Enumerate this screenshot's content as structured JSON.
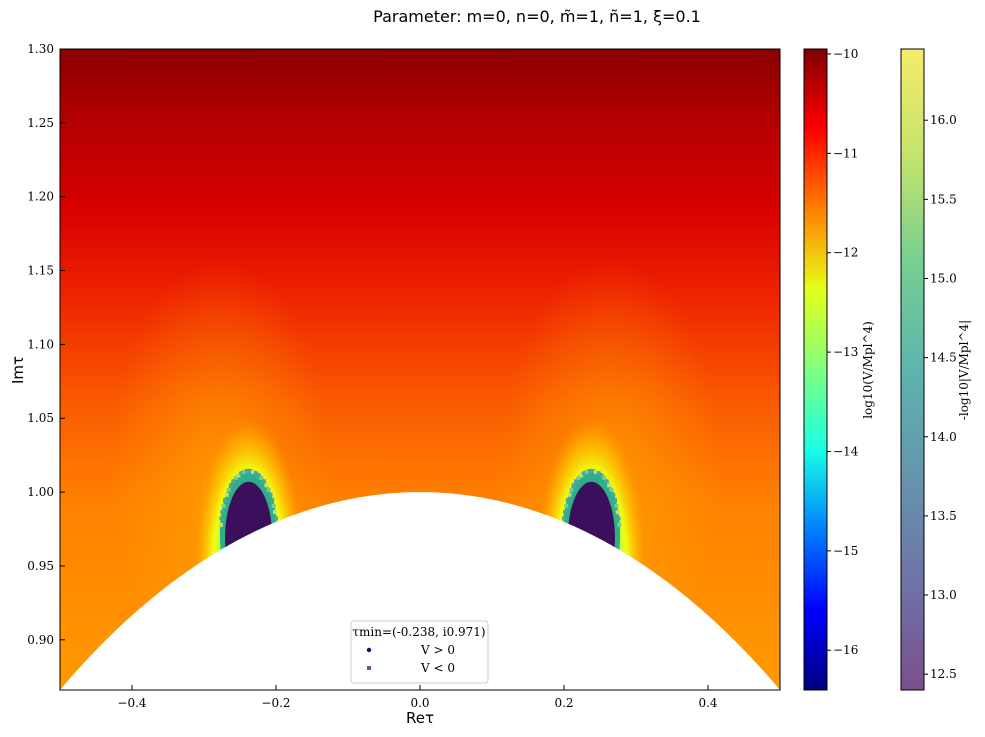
{
  "chart_data": {
    "type": "heatmap",
    "title": "Parameter: m=0, n=0, m̃=1, ñ=1, ξ=0.1",
    "xlabel": "Reτ",
    "ylabel": "Imτ",
    "xlim": [
      -0.5,
      0.5
    ],
    "ylim": [
      0.866,
      1.3
    ],
    "x_ticks": [
      "−0.4",
      "−0.2",
      "0.0",
      "0.2",
      "0.4"
    ],
    "x_tick_values": [
      -0.4,
      -0.2,
      0.0,
      0.2,
      0.4
    ],
    "y_ticks": [
      "0.90",
      "0.95",
      "1.00",
      "1.05",
      "1.10",
      "1.15",
      "1.20",
      "1.25",
      "1.30"
    ],
    "y_tick_values": [
      0.9,
      0.95,
      1.0,
      1.05,
      1.1,
      1.15,
      1.2,
      1.25,
      1.3
    ],
    "excluded_region": "|τ| < 1 (below unit circle, white)",
    "minima": [
      {
        "re": -0.238,
        "im": 0.971
      },
      {
        "re": 0.238,
        "im": 0.971
      }
    ],
    "colorbar_main": {
      "label": "log10(V/Mpl^4)",
      "range": [
        -16.4,
        -9.95
      ],
      "ticks": [
        "−10",
        "−11",
        "−12",
        "−13",
        "−14",
        "−15",
        "−16"
      ],
      "tick_values": [
        -10,
        -11,
        -12,
        -13,
        -14,
        -15,
        -16
      ],
      "colormap": "jet",
      "colors": [
        "#00007f",
        "#0000ff",
        "#0080ff",
        "#19ffe5",
        "#80ff80",
        "#e5ff19",
        "#ff8000",
        "#ff0000",
        "#7f0000"
      ]
    },
    "colorbar_secondary": {
      "label": "-log10|V/Mpl^4|",
      "range": [
        12.4,
        16.45
      ],
      "ticks": [
        "16.0",
        "15.5",
        "15.0",
        "14.5",
        "14.0",
        "13.5",
        "13.0",
        "12.5"
      ],
      "tick_values": [
        16.0,
        15.5,
        15.0,
        14.5,
        14.0,
        13.5,
        13.0,
        12.5
      ],
      "colormap": "viridis",
      "colors": [
        "#7a4f8f",
        "#6f73a6",
        "#6694ad",
        "#5db5ad",
        "#77cf92",
        "#c4e36e",
        "#f5ec6a"
      ]
    },
    "legend": {
      "placement": "lower-center",
      "title": "τmin=(-0.238, i0.971)",
      "entries": [
        {
          "label": "V > 0",
          "marker": "circle",
          "color": "#140a6e"
        },
        {
          "label": "V < 0",
          "marker": "square",
          "color": "#7a4f8f"
        }
      ]
    }
  }
}
